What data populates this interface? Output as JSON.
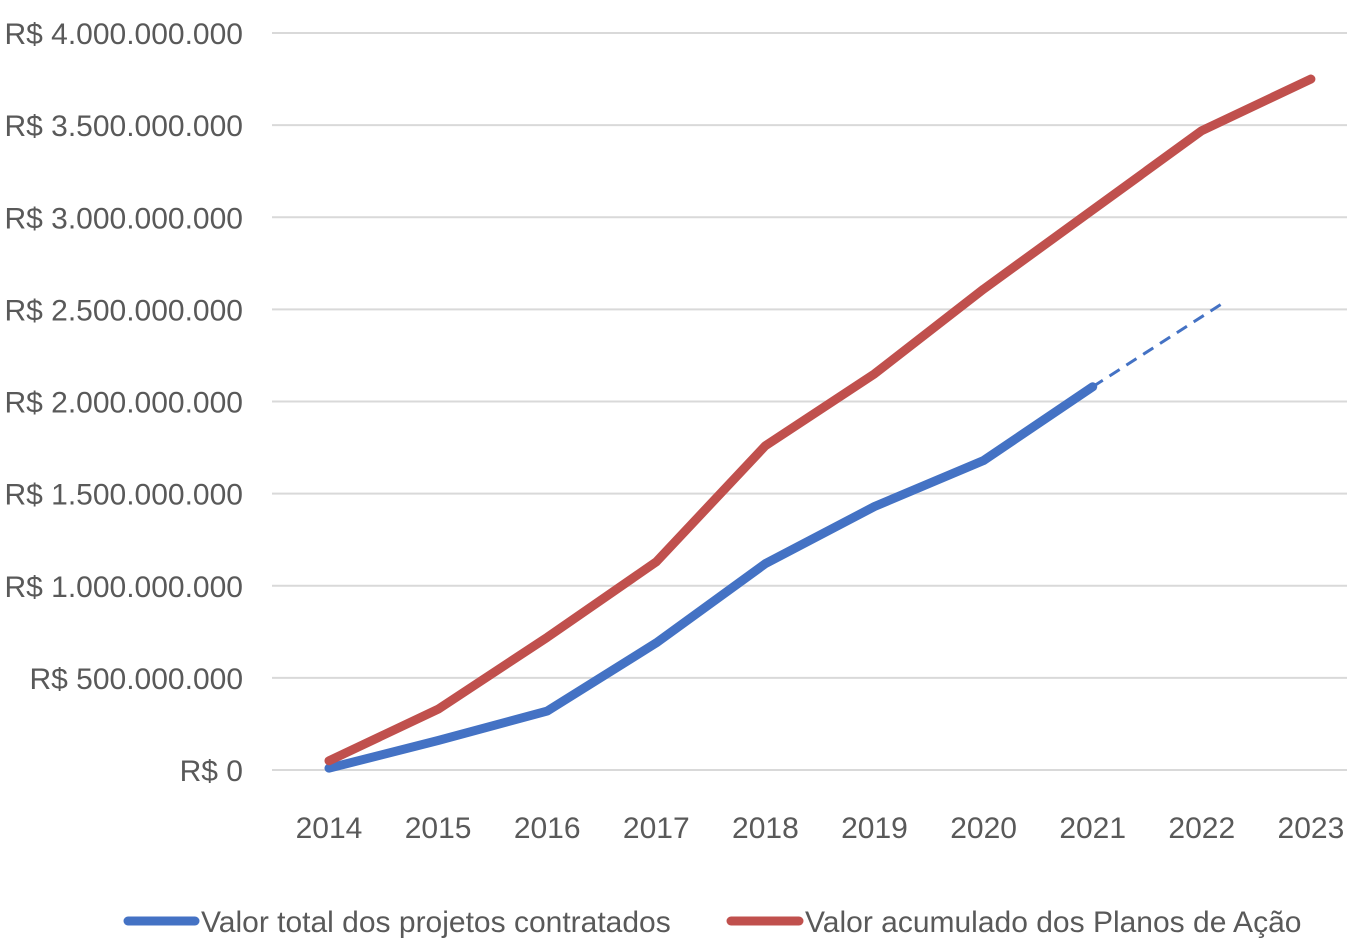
{
  "chart_data": {
    "type": "line",
    "categories": [
      "2014",
      "2015",
      "2016",
      "2017",
      "2018",
      "2019",
      "2020",
      "2021",
      "2022",
      "2023"
    ],
    "ylim": [
      0,
      4000000000
    ],
    "yticks": [
      0,
      500000000,
      1000000000,
      1500000000,
      2000000000,
      2500000000,
      3000000000,
      3500000000,
      4000000000
    ],
    "ytick_labels": [
      "R$ 0",
      "R$ 500.000.000",
      "R$ 1.000.000.000",
      "R$ 1.500.000.000",
      "R$ 2.000.000.000",
      "R$ 2.500.000.000",
      "R$ 3.000.000.000",
      "R$ 3.500.000.000",
      "R$ 4.000.000.000"
    ],
    "grid": true,
    "legend_position": "bottom",
    "series": [
      {
        "name": "Valor total dos projetos contratados",
        "color": "#4472C4",
        "values": [
          10000000,
          160000000,
          320000000,
          690000000,
          1120000000,
          1430000000,
          1680000000,
          2080000000,
          null,
          null
        ],
        "projection": {
          "from": [
            "2021",
            2080000000
          ],
          "to": [
            "2022",
            2530000000
          ],
          "style": "dashed"
        }
      },
      {
        "name": "Valor acumulado dos Planos de Ação",
        "color": "#C0504D",
        "values": [
          50000000,
          330000000,
          720000000,
          1130000000,
          1760000000,
          2150000000,
          2610000000,
          3040000000,
          3470000000,
          3750000000
        ]
      }
    ]
  }
}
